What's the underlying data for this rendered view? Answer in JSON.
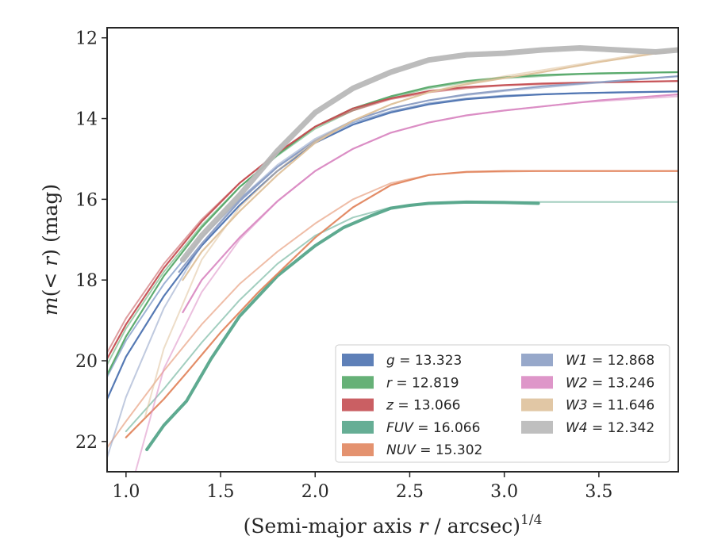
{
  "chart_data": {
    "type": "line",
    "xlabel_main": "(Semi-major axis ",
    "xlabel_var": "r",
    "xlabel_mid": " / arcsec)",
    "xlabel_exp": "1/4",
    "ylabel_main": "m",
    "ylabel_open": "(",
    "ylabel_expr": "< r",
    "ylabel_close": ")",
    "ylabel_unit": " (mag)",
    "xlim": [
      0.9,
      3.92
    ],
    "ylim": [
      22.75,
      11.75
    ],
    "y_inverted": true,
    "grid": false,
    "legend_position": "lower-right",
    "x_ticks": [
      1.0,
      1.5,
      2.0,
      2.5,
      3.0,
      3.5
    ],
    "x_tick_labels": [
      "1.0",
      "1.5",
      "2.0",
      "2.5",
      "3.0",
      "3.5"
    ],
    "y_ticks": [
      12,
      14,
      16,
      18,
      20,
      22
    ],
    "y_tick_labels": [
      "12",
      "14",
      "16",
      "18",
      "20",
      "22"
    ],
    "series": [
      {
        "name": "g",
        "legend_label": "13.323",
        "color": "#4c72b0",
        "data": [
          [
            0.9,
            20.95
          ],
          [
            1.0,
            19.9
          ],
          [
            1.2,
            18.4
          ],
          [
            1.4,
            17.15
          ],
          [
            1.6,
            16.15
          ],
          [
            1.8,
            15.3
          ],
          [
            2.0,
            14.6
          ],
          [
            2.2,
            14.15
          ],
          [
            2.4,
            13.85
          ],
          [
            2.6,
            13.65
          ],
          [
            2.8,
            13.52
          ],
          [
            3.0,
            13.45
          ],
          [
            3.2,
            13.4
          ],
          [
            3.4,
            13.37
          ],
          [
            3.6,
            13.35
          ],
          [
            3.92,
            13.33
          ]
        ],
        "model": [
          [
            0.9,
            20.4
          ],
          [
            1.0,
            19.5
          ],
          [
            1.2,
            18.1
          ],
          [
            1.4,
            16.95
          ],
          [
            1.6,
            16.0
          ],
          [
            1.8,
            15.2
          ],
          [
            2.0,
            14.55
          ],
          [
            2.2,
            14.1
          ],
          [
            2.4,
            13.82
          ],
          [
            2.6,
            13.62
          ],
          [
            2.8,
            13.5
          ],
          [
            3.0,
            13.43
          ],
          [
            3.4,
            13.37
          ],
          [
            3.92,
            13.33
          ]
        ]
      },
      {
        "name": "r",
        "legend_label": "12.819",
        "color": "#55a868",
        "data": [
          [
            0.9,
            20.35
          ],
          [
            1.0,
            19.4
          ],
          [
            1.2,
            17.9
          ],
          [
            1.4,
            16.7
          ],
          [
            1.6,
            15.7
          ],
          [
            1.8,
            14.9
          ],
          [
            2.0,
            14.2
          ],
          [
            2.2,
            13.75
          ],
          [
            2.4,
            13.45
          ],
          [
            2.6,
            13.22
          ],
          [
            2.8,
            13.07
          ],
          [
            3.0,
            12.98
          ],
          [
            3.2,
            12.92
          ],
          [
            3.5,
            12.88
          ],
          [
            3.92,
            12.85
          ]
        ],
        "model": [
          [
            0.9,
            20.1
          ],
          [
            1.0,
            19.2
          ],
          [
            1.2,
            17.8
          ],
          [
            1.4,
            16.65
          ],
          [
            1.6,
            15.7
          ],
          [
            1.8,
            14.92
          ],
          [
            2.0,
            14.25
          ],
          [
            2.2,
            13.8
          ],
          [
            2.4,
            13.48
          ],
          [
            2.6,
            13.25
          ],
          [
            2.8,
            13.1
          ],
          [
            3.0,
            13.0
          ],
          [
            3.4,
            12.9
          ],
          [
            3.92,
            12.85
          ]
        ]
      },
      {
        "name": "z",
        "legend_label": "13.066",
        "color": "#c44e52",
        "data": [
          [
            0.9,
            19.95
          ],
          [
            1.0,
            19.1
          ],
          [
            1.2,
            17.7
          ],
          [
            1.4,
            16.55
          ],
          [
            1.6,
            15.6
          ],
          [
            1.8,
            14.85
          ],
          [
            2.0,
            14.2
          ],
          [
            2.2,
            13.75
          ],
          [
            2.4,
            13.5
          ],
          [
            2.6,
            13.32
          ],
          [
            2.8,
            13.22
          ],
          [
            3.0,
            13.17
          ],
          [
            3.2,
            13.13
          ],
          [
            3.5,
            13.1
          ],
          [
            3.92,
            13.07
          ]
        ],
        "model": [
          [
            0.9,
            19.8
          ],
          [
            1.0,
            18.95
          ],
          [
            1.2,
            17.6
          ],
          [
            1.4,
            16.5
          ],
          [
            1.6,
            15.6
          ],
          [
            1.8,
            14.85
          ],
          [
            2.0,
            14.2
          ],
          [
            2.2,
            13.8
          ],
          [
            2.4,
            13.52
          ],
          [
            2.6,
            13.35
          ],
          [
            2.8,
            13.25
          ],
          [
            3.0,
            13.18
          ],
          [
            3.4,
            13.12
          ],
          [
            3.92,
            13.07
          ]
        ]
      },
      {
        "name": "FUV",
        "legend_label": "16.066",
        "color": "#55a58a",
        "data": [
          [
            1.11,
            22.2
          ],
          [
            1.2,
            21.6
          ],
          [
            1.32,
            21.0
          ],
          [
            1.45,
            19.95
          ],
          [
            1.6,
            18.9
          ],
          [
            1.8,
            17.9
          ],
          [
            2.0,
            17.15
          ],
          [
            2.15,
            16.7
          ],
          [
            2.3,
            16.4
          ],
          [
            2.4,
            16.22
          ],
          [
            2.5,
            16.15
          ],
          [
            2.6,
            16.1
          ],
          [
            2.8,
            16.07
          ],
          [
            3.0,
            16.08
          ],
          [
            3.18,
            16.1
          ]
        ],
        "model": [
          [
            1.0,
            21.75
          ],
          [
            1.2,
            20.7
          ],
          [
            1.4,
            19.55
          ],
          [
            1.6,
            18.5
          ],
          [
            1.8,
            17.6
          ],
          [
            2.0,
            16.9
          ],
          [
            2.2,
            16.45
          ],
          [
            2.4,
            16.2
          ],
          [
            2.6,
            16.1
          ],
          [
            2.8,
            16.07
          ],
          [
            3.2,
            16.066
          ],
          [
            3.92,
            16.066
          ]
        ]
      },
      {
        "name": "NUV",
        "legend_label": "15.302",
        "color": "#e1865f",
        "data": [
          [
            1.0,
            21.9
          ],
          [
            1.2,
            20.95
          ],
          [
            1.32,
            20.3
          ],
          [
            1.5,
            19.3
          ],
          [
            1.7,
            18.3
          ],
          [
            1.9,
            17.4
          ],
          [
            2.0,
            16.95
          ],
          [
            2.2,
            16.2
          ],
          [
            2.4,
            15.65
          ],
          [
            2.6,
            15.4
          ],
          [
            2.8,
            15.32
          ],
          [
            3.0,
            15.3
          ],
          [
            3.5,
            15.3
          ],
          [
            3.92,
            15.3
          ]
        ],
        "model": [
          [
            0.9,
            22.15
          ],
          [
            1.0,
            21.5
          ],
          [
            1.2,
            20.25
          ],
          [
            1.4,
            19.1
          ],
          [
            1.6,
            18.1
          ],
          [
            1.8,
            17.3
          ],
          [
            2.0,
            16.6
          ],
          [
            2.2,
            16.0
          ],
          [
            2.4,
            15.6
          ],
          [
            2.6,
            15.4
          ],
          [
            2.8,
            15.33
          ],
          [
            3.2,
            15.3
          ],
          [
            3.92,
            15.3
          ]
        ]
      },
      {
        "name": "W1",
        "legend_label": "12.868",
        "color": "#8c9ec4",
        "data": [
          [
            1.28,
            17.8
          ],
          [
            1.4,
            17.1
          ],
          [
            1.6,
            16.05
          ],
          [
            1.8,
            15.2
          ],
          [
            2.0,
            14.55
          ],
          [
            2.2,
            14.05
          ],
          [
            2.4,
            13.75
          ],
          [
            2.6,
            13.55
          ],
          [
            2.8,
            13.4
          ],
          [
            3.0,
            13.3
          ],
          [
            3.2,
            13.2
          ],
          [
            3.5,
            13.1
          ],
          [
            3.92,
            12.95
          ]
        ],
        "model": [
          [
            0.9,
            22.4
          ],
          [
            1.0,
            20.9
          ],
          [
            1.2,
            18.7
          ],
          [
            1.4,
            17.1
          ],
          [
            1.6,
            16.0
          ],
          [
            1.8,
            15.15
          ],
          [
            2.0,
            14.5
          ],
          [
            2.2,
            14.05
          ],
          [
            2.4,
            13.75
          ],
          [
            2.6,
            13.55
          ],
          [
            2.8,
            13.42
          ],
          [
            3.0,
            13.32
          ],
          [
            3.4,
            13.15
          ],
          [
            3.92,
            12.95
          ]
        ]
      },
      {
        "name": "W2",
        "legend_label": "13.246",
        "color": "#da8bc3",
        "data": [
          [
            1.3,
            18.8
          ],
          [
            1.4,
            18.0
          ],
          [
            1.6,
            16.95
          ],
          [
            1.8,
            16.05
          ],
          [
            2.0,
            15.3
          ],
          [
            2.2,
            14.75
          ],
          [
            2.4,
            14.35
          ],
          [
            2.6,
            14.1
          ],
          [
            2.8,
            13.92
          ],
          [
            3.0,
            13.8
          ],
          [
            3.2,
            13.7
          ],
          [
            3.5,
            13.55
          ],
          [
            3.92,
            13.4
          ]
        ],
        "model": [
          [
            1.05,
            22.75
          ],
          [
            1.2,
            20.2
          ],
          [
            1.4,
            18.3
          ],
          [
            1.6,
            17.0
          ],
          [
            1.8,
            16.05
          ],
          [
            2.0,
            15.3
          ],
          [
            2.2,
            14.75
          ],
          [
            2.4,
            14.35
          ],
          [
            2.6,
            14.1
          ],
          [
            2.8,
            13.92
          ],
          [
            3.0,
            13.8
          ],
          [
            3.4,
            13.6
          ],
          [
            3.92,
            13.45
          ]
        ]
      },
      {
        "name": "W3",
        "legend_label": "11.646",
        "color": "#dec19b",
        "data": [
          [
            1.3,
            18.0
          ],
          [
            1.4,
            17.3
          ],
          [
            1.6,
            16.3
          ],
          [
            1.8,
            15.4
          ],
          [
            2.0,
            14.6
          ],
          [
            2.2,
            14.05
          ],
          [
            2.4,
            13.65
          ],
          [
            2.6,
            13.35
          ],
          [
            2.8,
            13.15
          ],
          [
            3.0,
            13.0
          ],
          [
            3.2,
            12.85
          ],
          [
            3.5,
            12.6
          ],
          [
            3.92,
            12.3
          ]
        ],
        "model": [
          [
            1.1,
            21.4
          ],
          [
            1.2,
            19.7
          ],
          [
            1.4,
            17.5
          ],
          [
            1.6,
            16.2
          ],
          [
            1.8,
            15.3
          ],
          [
            2.0,
            14.55
          ],
          [
            2.2,
            14.05
          ],
          [
            2.4,
            13.65
          ],
          [
            2.6,
            13.35
          ],
          [
            2.8,
            13.12
          ],
          [
            3.0,
            12.95
          ],
          [
            3.4,
            12.65
          ],
          [
            3.92,
            12.25
          ]
        ]
      },
      {
        "name": "W4",
        "legend_label": "12.342",
        "color": "#b8b8b8",
        "data": [
          [
            1.3,
            17.5
          ],
          [
            1.4,
            16.9
          ],
          [
            1.6,
            15.9
          ],
          [
            1.8,
            14.8
          ],
          [
            2.0,
            13.85
          ],
          [
            2.2,
            13.25
          ],
          [
            2.4,
            12.85
          ],
          [
            2.6,
            12.55
          ],
          [
            2.8,
            12.42
          ],
          [
            3.0,
            12.38
          ],
          [
            3.2,
            12.3
          ],
          [
            3.4,
            12.25
          ],
          [
            3.6,
            12.3
          ],
          [
            3.8,
            12.35
          ],
          [
            3.92,
            12.3
          ]
        ],
        "model": []
      }
    ]
  }
}
